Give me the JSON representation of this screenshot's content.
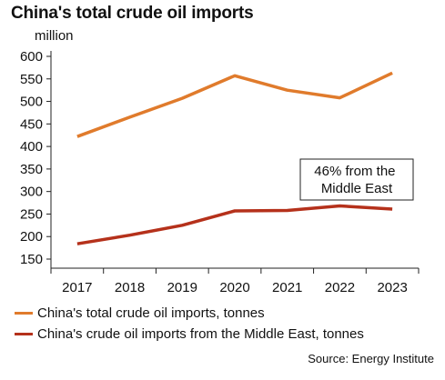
{
  "chart_data": {
    "type": "line",
    "title": "China's total crude oil imports",
    "ylabel": "million",
    "xlabel": "",
    "x": [
      "2017",
      "2018",
      "2019",
      "2020",
      "2021",
      "2022",
      "2023"
    ],
    "ylim": [
      150,
      600
    ],
    "yticks": [
      150,
      200,
      250,
      300,
      350,
      400,
      450,
      500,
      550,
      600
    ],
    "grid": false,
    "legend_position": "bottom",
    "series": [
      {
        "name": "China's total crude oil imports, tonnes",
        "color": "#E07B2C",
        "values": [
          422,
          465,
          507,
          557,
          525,
          508,
          563
        ]
      },
      {
        "name": "China's crude oil imports from the Middle East, tonnes",
        "color": "#B5311B",
        "values": [
          184,
          203,
          225,
          257,
          258,
          268,
          261
        ]
      }
    ],
    "annotation": "46% from the\nMiddle East",
    "source": "Source: Energy Institute"
  }
}
